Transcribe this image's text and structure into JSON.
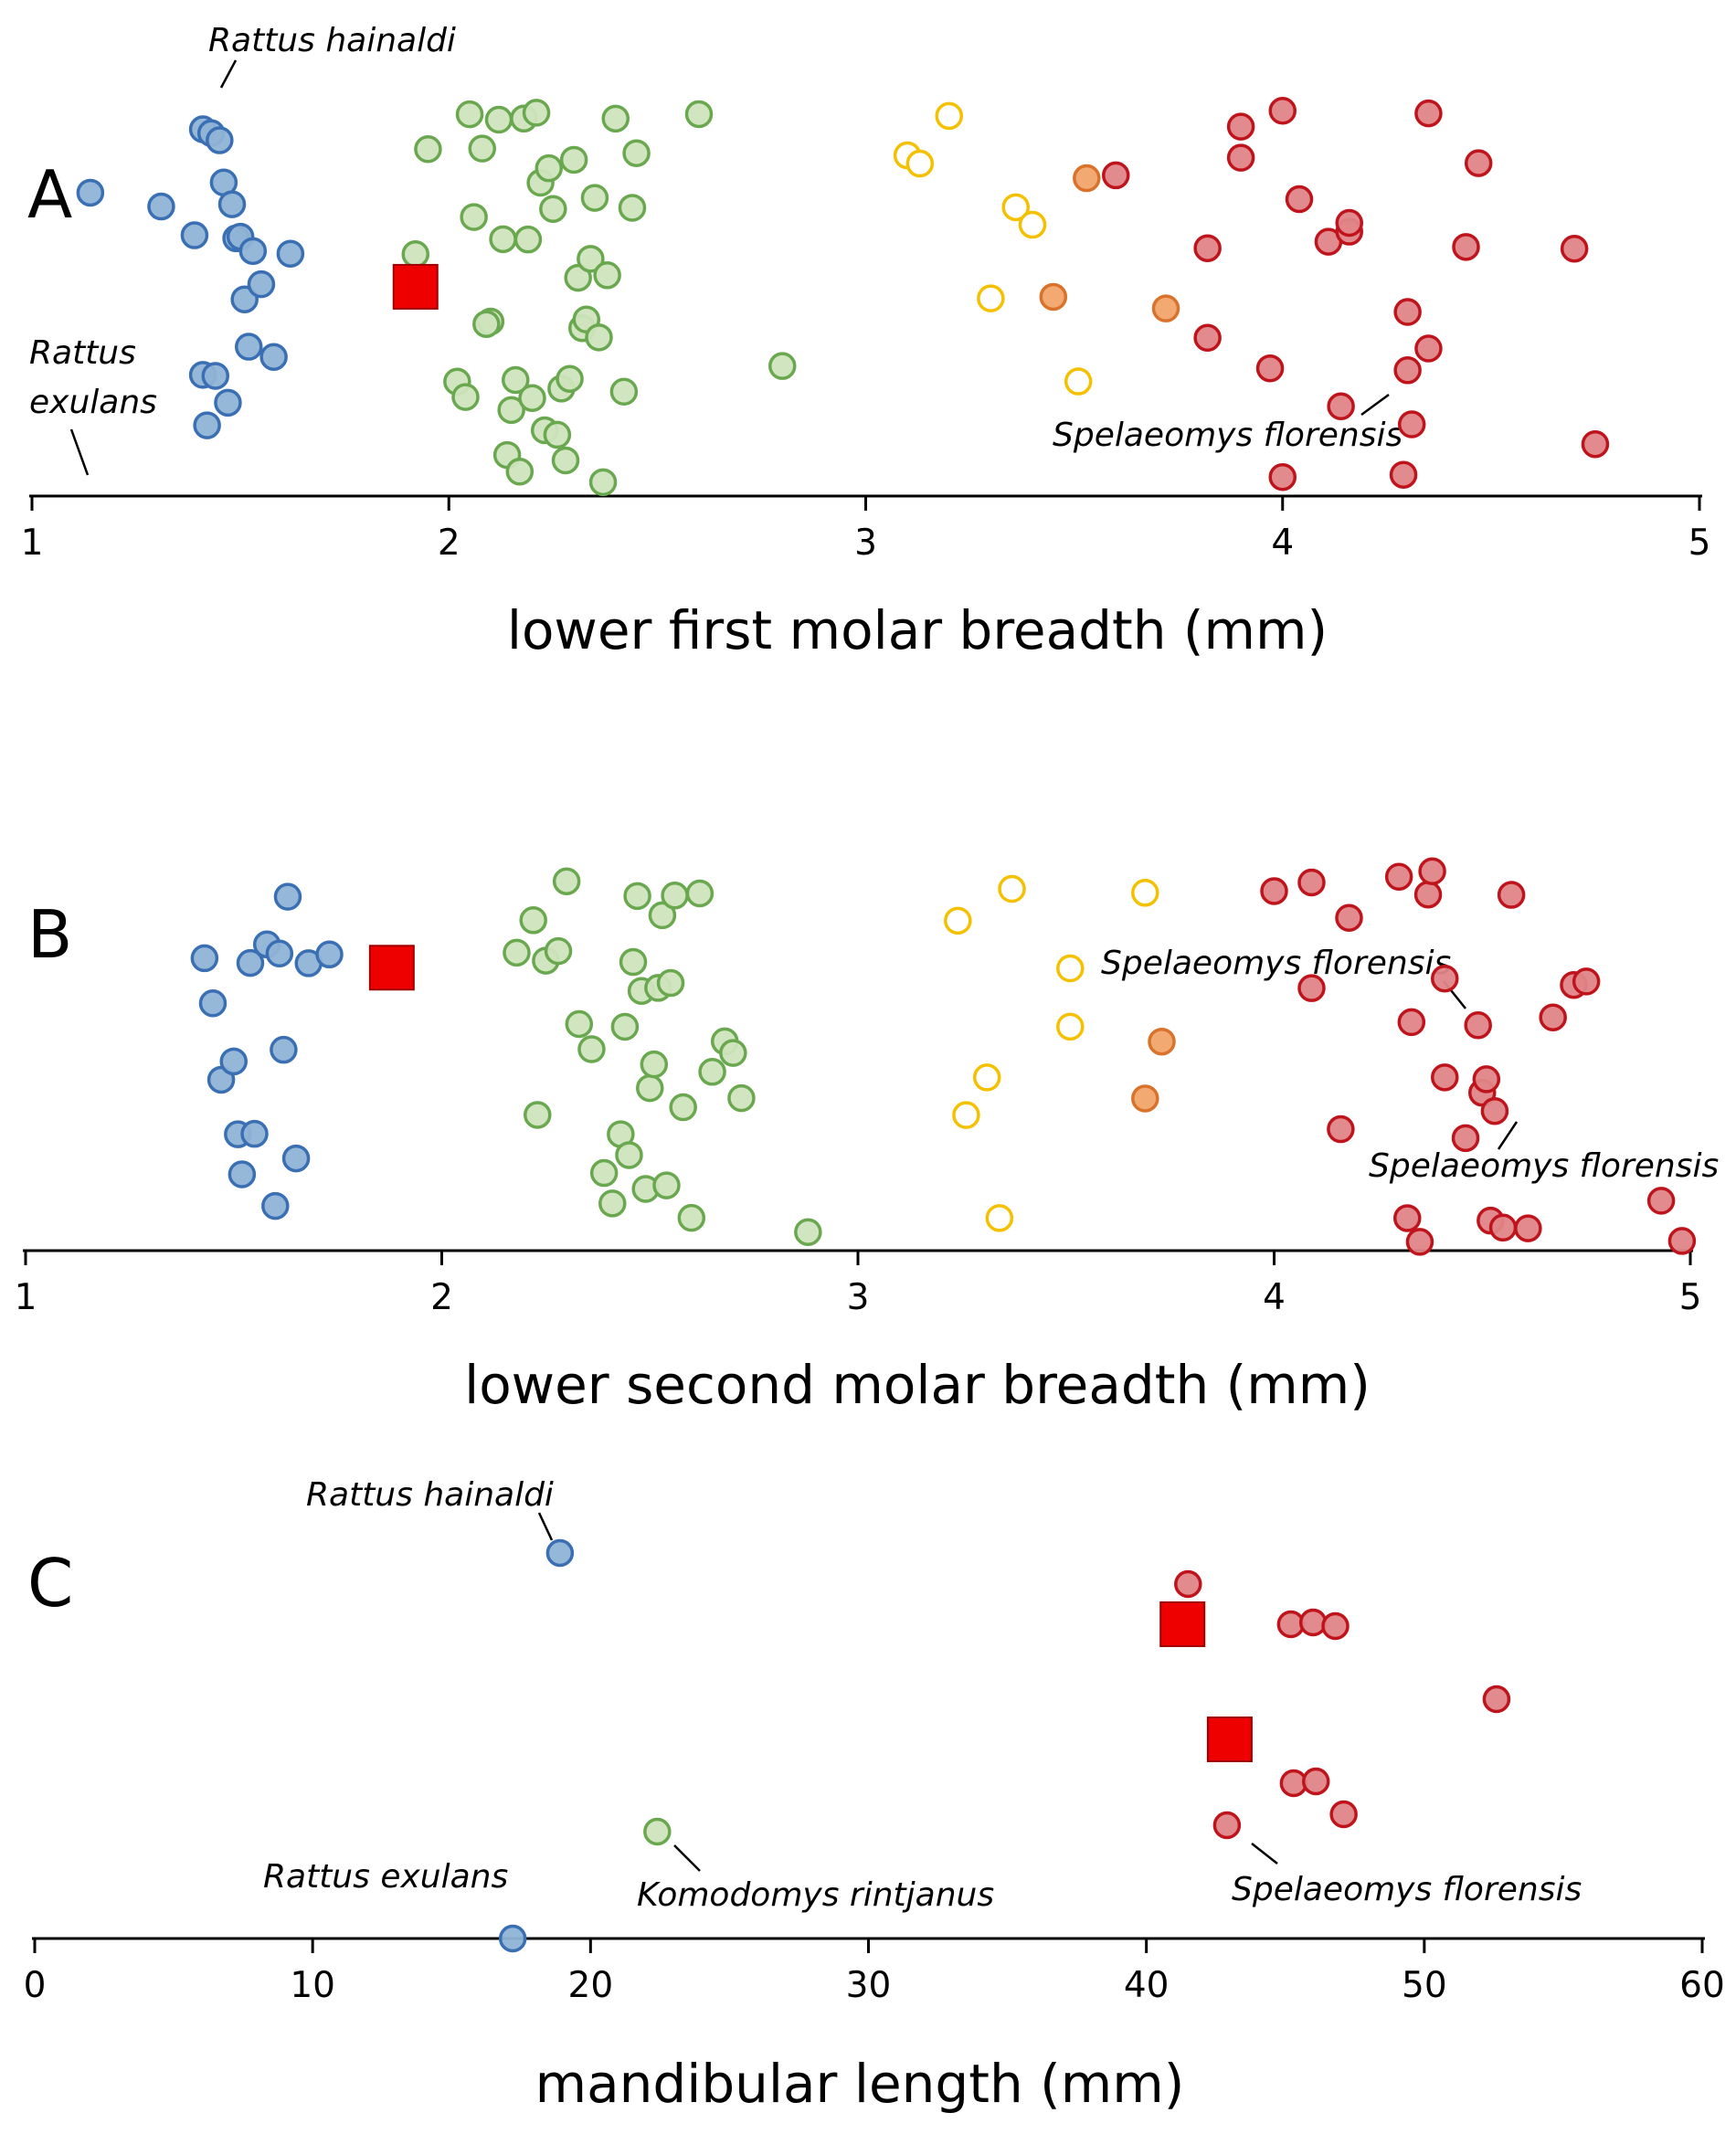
{
  "colors": {
    "blue_fill": "#8fb3d6",
    "blue_stroke": "#3a6fb4",
    "green_fill": "#cfe4bd",
    "green_stroke": "#6aa84f",
    "yellow_fill": "#ffffff",
    "yellow_stroke": "#f5c000",
    "orange_fill": "#f2a46a",
    "orange_stroke": "#d9722b",
    "red_fill": "#e08588",
    "red_stroke": "#c0141c",
    "square_fill": "#ee0000",
    "square_stroke": "#a00000"
  },
  "chart_data": [
    {
      "type": "scatter",
      "panel": "A",
      "title": "",
      "xlabel": "lower first molar breadth (mm)",
      "ylabel": "",
      "xlim": [
        1,
        5
      ],
      "xticks": [
        1,
        2,
        3,
        4,
        5
      ],
      "annotations": [
        "Rattus hainaldi",
        "Rattus exulans",
        "Spelaeomys florensis"
      ],
      "series": [
        {
          "group": "blue",
          "x": [
            1.14,
            1.31,
            1.39,
            1.41,
            1.41,
            1.42,
            1.43,
            1.44,
            1.45,
            1.46,
            1.47,
            1.48,
            1.49,
            1.5,
            1.51,
            1.52,
            1.53,
            1.55,
            1.58,
            1.62
          ]
        },
        {
          "group": "green",
          "x": [
            1.95,
            2.02,
            2.04,
            2.05,
            2.06,
            2.08,
            2.1,
            2.12,
            2.13,
            2.14,
            2.15,
            2.16,
            2.17,
            2.18,
            2.19,
            2.2,
            2.21,
            2.22,
            2.23,
            2.24,
            2.25,
            2.26,
            2.27,
            2.28,
            2.29,
            2.3,
            2.31,
            2.32,
            2.33,
            2.34,
            2.35,
            2.36,
            2.38,
            2.4,
            2.42,
            2.45,
            2.6,
            2.8,
            1.92,
            2.09,
            2.44,
            2.37
          ]
        },
        {
          "group": "yellow",
          "x": [
            3.1,
            3.13,
            3.2,
            3.3,
            3.36,
            3.4,
            3.51
          ]
        },
        {
          "group": "orange",
          "x": [
            3.45,
            3.53,
            3.72
          ]
        },
        {
          "group": "red",
          "x": [
            3.6,
            3.82,
            3.82,
            3.9,
            3.9,
            3.97,
            4.0,
            4.0,
            4.04,
            4.11,
            4.14,
            4.16,
            4.16,
            4.29,
            4.3,
            4.3,
            4.31,
            4.35,
            4.35,
            4.44,
            4.47,
            4.7,
            4.75
          ]
        },
        {
          "group": "square",
          "x": [
            1.92
          ]
        }
      ]
    },
    {
      "type": "scatter",
      "panel": "B",
      "title": "",
      "xlabel": "lower second molar breadth (mm)",
      "ylabel": "",
      "xlim": [
        1,
        5
      ],
      "xticks": [
        1,
        2,
        3,
        4,
        5
      ],
      "annotations": [
        "Spelaeomys florensis",
        "Spelaeomys florensis"
      ],
      "series": [
        {
          "group": "blue",
          "x": [
            1.43,
            1.45,
            1.47,
            1.5,
            1.51,
            1.52,
            1.54,
            1.55,
            1.58,
            1.6,
            1.61,
            1.62,
            1.63,
            1.65,
            1.68,
            1.73
          ]
        },
        {
          "group": "green",
          "x": [
            2.18,
            2.23,
            2.25,
            2.3,
            2.33,
            2.36,
            2.39,
            2.41,
            2.43,
            2.44,
            2.45,
            2.46,
            2.47,
            2.48,
            2.49,
            2.5,
            2.51,
            2.52,
            2.53,
            2.54,
            2.55,
            2.56,
            2.58,
            2.6,
            2.62,
            2.65,
            2.68,
            2.72,
            2.88,
            2.22,
            2.28,
            2.7
          ]
        },
        {
          "group": "yellow",
          "x": [
            3.24,
            3.26,
            3.31,
            3.34,
            3.37,
            3.51,
            3.51,
            3.69
          ]
        },
        {
          "group": "orange",
          "x": [
            3.69,
            3.73
          ]
        },
        {
          "group": "red",
          "x": [
            4.0,
            4.09,
            4.09,
            4.16,
            4.18,
            4.3,
            4.32,
            4.33,
            4.35,
            4.37,
            4.38,
            4.41,
            4.41,
            4.46,
            4.49,
            4.5,
            4.51,
            4.52,
            4.53,
            4.55,
            4.57,
            4.61,
            4.67,
            4.72,
            4.75,
            4.93,
            4.98
          ]
        },
        {
          "group": "square",
          "x": [
            1.88
          ]
        }
      ]
    },
    {
      "type": "scatter",
      "panel": "C",
      "title": "",
      "xlabel": "mandibular length (mm)",
      "ylabel": "",
      "xlim": [
        0,
        60
      ],
      "xticks": [
        0,
        10,
        20,
        30,
        40,
        50,
        60
      ],
      "annotations": [
        "Rattus hainaldi",
        "Rattus exulans",
        "Komodomys rintjanus",
        "Spelaeomys florensis"
      ],
      "series": [
        {
          "group": "blue",
          "x": [
            18.9,
            17.2
          ]
        },
        {
          "group": "green",
          "x": [
            22.4
          ]
        },
        {
          "group": "red",
          "x": [
            41.5,
            45.2,
            46.0,
            46.8,
            52.6,
            45.3,
            46.1,
            47.1,
            42.9
          ]
        },
        {
          "group": "square",
          "x": [
            41.3,
            43.0
          ]
        }
      ]
    }
  ]
}
